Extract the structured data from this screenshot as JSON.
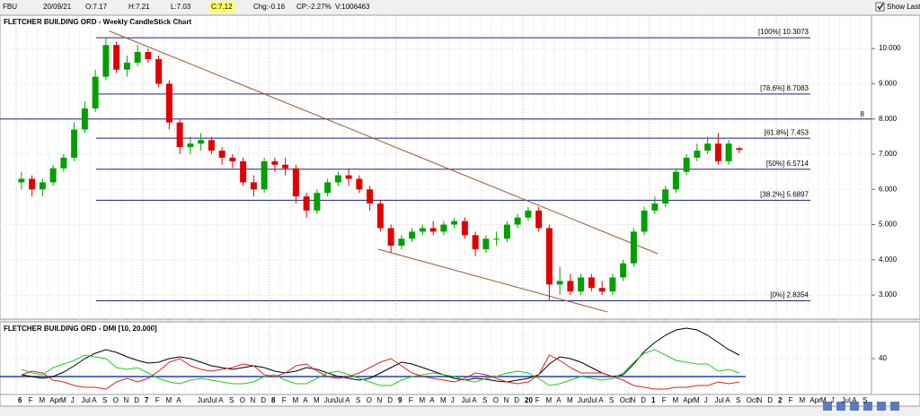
{
  "toolbar": {
    "symbol": "FBU",
    "date": "20/09/21",
    "open": "O:7.17",
    "high": "H:7.21",
    "low": "L:7.03",
    "close": "C:7.12",
    "change": "Chg:-0.16",
    "change_pct": "CP:-2.27%",
    "volume": "V:1006463",
    "show_last": "Show Last"
  },
  "chart_data": [
    {
      "type": "candlestick",
      "title": "FLETCHER BUILDING ORD - Weekly CandleStick Chart",
      "categories": [
        "6",
        "F",
        "M",
        "Apr",
        "M",
        "J",
        "Jul",
        "A",
        "S",
        "O",
        "N",
        "D",
        "7",
        "F",
        "M",
        "A",
        null,
        "Jun",
        "Jul",
        "A",
        "S",
        "O",
        "N",
        "D",
        "8",
        "F",
        "M",
        "A",
        "M",
        "Jun",
        "Jul",
        "A",
        "S",
        "O",
        "N",
        "D",
        "9",
        "F",
        "M",
        "A",
        "M",
        "J",
        "Jul",
        "A",
        "S",
        "O",
        "N",
        "D",
        "20",
        "F",
        "M",
        "A",
        "M",
        "Jun",
        "Jul",
        "A",
        "S",
        "Oct",
        "N",
        "D",
        "1",
        "F",
        "M",
        "Apr",
        "M",
        "J",
        "Jul",
        "A",
        "S",
        "Oct",
        "N",
        "D",
        "2",
        "F",
        "M",
        "Apr",
        "M",
        "J",
        "Jul",
        "A",
        "S"
      ],
      "open": [
        6.2,
        6.3,
        6.0,
        6.2,
        6.6,
        6.9,
        7.7,
        8.3,
        9.2,
        10.1,
        9.4,
        9.6,
        9.9,
        9.7,
        9.0,
        7.9,
        7.2,
        7.3,
        7.4,
        7.1,
        6.9,
        6.8,
        6.2,
        6.0,
        6.8,
        6.7,
        6.6,
        5.8,
        5.4,
        5.9,
        6.2,
        6.4,
        6.3,
        6.0,
        5.6,
        4.9,
        4.4,
        4.6,
        4.8,
        4.9,
        4.8,
        5.0,
        5.1,
        4.7,
        4.3,
        4.6,
        4.6,
        5.0,
        5.2,
        5.4,
        4.9,
        3.3,
        3.4,
        3.1,
        3.5,
        3.2,
        3.1,
        3.5,
        3.9,
        4.8,
        5.4,
        5.6,
        6.0,
        6.5,
        6.9,
        7.1,
        7.3,
        6.8,
        7.17,
        null,
        null,
        null,
        null,
        null,
        null,
        null,
        null,
        null,
        null,
        null,
        null
      ],
      "high": [
        6.5,
        6.4,
        6.3,
        6.7,
        7.0,
        7.9,
        8.5,
        9.4,
        10.31,
        10.2,
        9.8,
        10.1,
        10.0,
        9.8,
        9.1,
        8.0,
        7.5,
        7.6,
        7.5,
        7.2,
        7.0,
        6.9,
        6.4,
        6.9,
        6.9,
        6.9,
        6.7,
        5.9,
        6.0,
        6.3,
        6.5,
        6.6,
        6.4,
        6.1,
        5.7,
        5.0,
        4.7,
        4.9,
        5.0,
        5.1,
        5.1,
        5.2,
        5.2,
        4.8,
        4.7,
        4.8,
        5.1,
        5.3,
        5.5,
        5.5,
        5.0,
        3.8,
        3.6,
        3.6,
        3.6,
        3.4,
        3.6,
        4.0,
        4.9,
        5.5,
        5.8,
        6.1,
        6.6,
        7.0,
        7.3,
        7.5,
        7.6,
        7.4,
        7.21,
        null,
        null,
        null,
        null,
        null,
        null,
        null,
        null,
        null,
        null,
        null,
        null
      ],
      "low": [
        6.0,
        5.8,
        5.8,
        6.1,
        6.5,
        6.8,
        7.6,
        8.2,
        9.1,
        9.3,
        9.2,
        9.5,
        9.6,
        8.9,
        7.7,
        7.0,
        7.0,
        7.1,
        7.0,
        6.7,
        6.6,
        6.1,
        5.8,
        5.9,
        6.5,
        6.4,
        5.6,
        5.2,
        5.3,
        5.8,
        6.1,
        6.1,
        5.9,
        5.4,
        4.8,
        4.2,
        4.3,
        4.5,
        4.7,
        4.7,
        4.7,
        4.9,
        4.6,
        4.1,
        4.2,
        4.4,
        4.5,
        4.9,
        5.1,
        4.8,
        2.84,
        3.0,
        3.0,
        3.0,
        3.1,
        3.0,
        3.0,
        3.4,
        3.8,
        4.7,
        5.3,
        5.5,
        5.9,
        6.4,
        6.8,
        7.0,
        6.7,
        6.7,
        7.03,
        null,
        null,
        null,
        null,
        null,
        null,
        null,
        null,
        null,
        null,
        null,
        null
      ],
      "close": [
        6.3,
        6.0,
        6.2,
        6.6,
        6.9,
        7.7,
        8.3,
        9.2,
        10.1,
        9.4,
        9.6,
        9.9,
        9.7,
        9.0,
        7.9,
        7.2,
        7.3,
        7.4,
        7.1,
        6.9,
        6.8,
        6.2,
        6.0,
        6.8,
        6.7,
        6.6,
        5.8,
        5.4,
        5.9,
        6.2,
        6.4,
        6.3,
        6.0,
        5.6,
        4.9,
        4.4,
        4.6,
        4.8,
        4.9,
        4.8,
        5.0,
        5.1,
        4.7,
        4.3,
        4.6,
        4.6,
        5.0,
        5.2,
        5.4,
        4.9,
        3.3,
        3.4,
        3.1,
        3.5,
        3.2,
        3.1,
        3.5,
        3.9,
        4.8,
        5.4,
        5.6,
        6.0,
        6.5,
        6.9,
        7.1,
        7.3,
        6.8,
        7.3,
        7.12,
        null,
        null,
        null,
        null,
        null,
        null,
        null,
        null,
        null,
        null,
        null,
        null
      ],
      "up_color": "#00a000",
      "down_color": "#e00000",
      "ylim": [
        2.34,
        10.92
      ],
      "yticks": [
        {
          "value": 3,
          "label": "3.000"
        },
        {
          "value": 4,
          "label": "4.000"
        },
        {
          "value": 5,
          "label": "5.000"
        },
        {
          "value": 6,
          "label": "6.000"
        },
        {
          "value": 7,
          "label": "7.000"
        },
        {
          "value": 8,
          "label": "8.000"
        },
        {
          "value": 9,
          "label": "9.000"
        },
        {
          "value": 10,
          "label": "10.000"
        }
      ],
      "levels": [
        {
          "value": 10.3073,
          "label": "[100%] 10.3073"
        },
        {
          "value": 8.7083,
          "label": "[78.6%] 8.7083"
        },
        {
          "value": 7.453,
          "label": "[61.8%] 7.453"
        },
        {
          "value": 6.5714,
          "label": "[50%] 6.5714"
        },
        {
          "value": 5.6897,
          "label": "[38.2%] 5.6897"
        },
        {
          "value": 2.8354,
          "label": "[0%] 2.8354"
        }
      ],
      "level_color": "#1a237e",
      "reference_line": {
        "value": 8,
        "label": "8"
      },
      "trend_lines": [
        {
          "from": [
            8.3,
            10.5
          ],
          "to": [
            60.3,
            4.17
          ]
        },
        {
          "from": [
            33.8,
            4.3
          ],
          "to": [
            55.5,
            2.52
          ]
        }
      ],
      "trend_color": "#a0522d",
      "grid": true
    },
    {
      "type": "line",
      "title": "FLETCHER BUILDING ORD - DMI [10, 20.000]",
      "ylim": [
        0,
        78
      ],
      "yticks": [
        40
      ],
      "threshold": 20,
      "threshold_color": "#1f3fbf",
      "series": [
        {
          "color": "#000000",
          "values": [
            22,
            20,
            18,
            20,
            25,
            32,
            40,
            46,
            50,
            47,
            42,
            38,
            35,
            36,
            40,
            42,
            40,
            36,
            32,
            30,
            28,
            30,
            32,
            30,
            26,
            24,
            26,
            30,
            28,
            24,
            20,
            18,
            16,
            18,
            24,
            30,
            36,
            34,
            30,
            26,
            22,
            18,
            16,
            18,
            17,
            15,
            14,
            16,
            18,
            22,
            34,
            42,
            40,
            36,
            30,
            24,
            20,
            22,
            34,
            48,
            58,
            66,
            72,
            74,
            72,
            66,
            58,
            50,
            44,
            null,
            null,
            null,
            null,
            null,
            null,
            null,
            null,
            null,
            null,
            null,
            null
          ]
        },
        {
          "color": "#22cc22",
          "values": [
            28,
            24,
            22,
            30,
            34,
            38,
            44,
            42,
            40,
            30,
            28,
            30,
            24,
            18,
            14,
            12,
            16,
            18,
            16,
            14,
            12,
            12,
            14,
            20,
            22,
            16,
            12,
            12,
            18,
            24,
            26,
            22,
            18,
            14,
            10,
            10,
            16,
            20,
            22,
            24,
            22,
            20,
            16,
            14,
            18,
            20,
            24,
            26,
            24,
            18,
            10,
            12,
            16,
            20,
            18,
            16,
            18,
            24,
            36,
            46,
            50,
            44,
            38,
            36,
            34,
            34,
            26,
            28,
            24,
            null,
            null,
            null,
            null,
            null,
            null,
            null,
            null,
            null,
            null,
            null,
            null
          ]
        },
        {
          "color": "#dd2222",
          "values": [
            22,
            26,
            24,
            16,
            14,
            10,
            8,
            8,
            6,
            14,
            18,
            14,
            18,
            26,
            36,
            40,
            32,
            28,
            26,
            28,
            30,
            34,
            32,
            22,
            20,
            24,
            32,
            34,
            26,
            20,
            18,
            20,
            24,
            30,
            36,
            40,
            32,
            24,
            20,
            18,
            16,
            14,
            18,
            24,
            22,
            18,
            14,
            12,
            14,
            22,
            44,
            38,
            30,
            24,
            24,
            24,
            20,
            16,
            10,
            8,
            6,
            6,
            8,
            8,
            10,
            10,
            14,
            12,
            14,
            null,
            null,
            null,
            null,
            null,
            null,
            null,
            null,
            null,
            null,
            null,
            null
          ]
        }
      ]
    }
  ]
}
